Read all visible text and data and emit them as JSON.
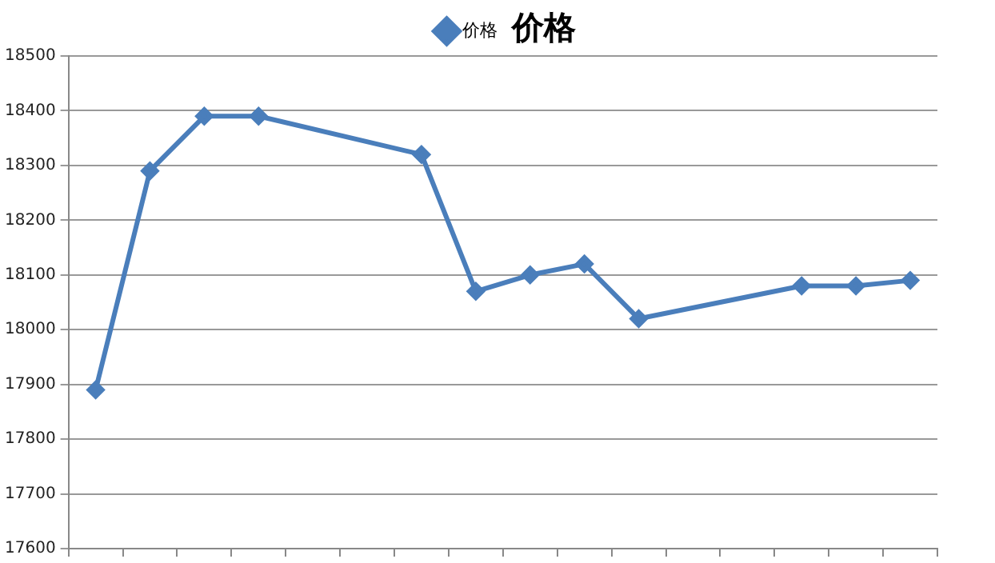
{
  "chart_data": {
    "type": "line",
    "title": "价格",
    "categories": [
      null,
      null,
      null,
      null,
      null,
      null,
      null,
      null,
      null,
      null,
      null,
      null,
      null,
      null,
      null,
      null
    ],
    "series": [
      {
        "name": "价格",
        "color": "#4a7ebb",
        "values": [
          17890,
          18290,
          18390,
          18390,
          null,
          null,
          18320,
          18070,
          18100,
          18120,
          18020,
          null,
          null,
          18080,
          18080,
          18090
        ]
      }
    ],
    "ylim": [
      17600,
      18500
    ],
    "yticks": [
      17600,
      17700,
      17800,
      17900,
      18000,
      18100,
      18200,
      18300,
      18400,
      18500
    ],
    "grid": "y",
    "legend": "top",
    "marker": "diamond",
    "line_style": "solid",
    "tick_labels": "y"
  }
}
